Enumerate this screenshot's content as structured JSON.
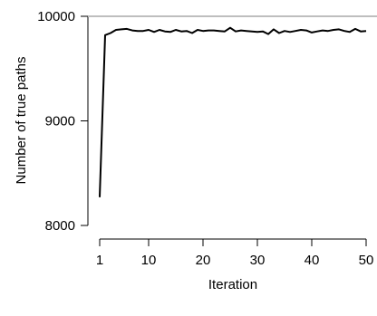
{
  "chart_data": {
    "type": "line",
    "title": "",
    "xlabel": "Iteration",
    "ylabel": "Number of true paths",
    "xlim": [
      1,
      50
    ],
    "ylim": [
      8000,
      10000
    ],
    "x_ticks": [
      1,
      10,
      20,
      30,
      40,
      50
    ],
    "y_ticks": [
      8000,
      9000,
      10000
    ],
    "reference_line": {
      "y": 10000,
      "color": "#bebebe"
    },
    "grid": false,
    "series": [
      {
        "color": "#000000",
        "x": [
          1,
          2,
          3,
          4,
          5,
          6,
          7,
          8,
          9,
          10,
          11,
          12,
          13,
          14,
          15,
          16,
          17,
          18,
          19,
          20,
          21,
          22,
          23,
          24,
          25,
          26,
          27,
          28,
          29,
          30,
          31,
          32,
          33,
          34,
          35,
          36,
          37,
          38,
          39,
          40,
          41,
          42,
          43,
          44,
          45,
          46,
          47,
          48,
          49,
          50
        ],
        "y": [
          8270,
          9820,
          9840,
          9870,
          9875,
          9880,
          9865,
          9860,
          9860,
          9870,
          9850,
          9870,
          9855,
          9850,
          9870,
          9855,
          9860,
          9840,
          9870,
          9860,
          9865,
          9865,
          9860,
          9855,
          9890,
          9855,
          9865,
          9860,
          9855,
          9850,
          9855,
          9830,
          9875,
          9840,
          9860,
          9850,
          9860,
          9870,
          9865,
          9845,
          9855,
          9865,
          9860,
          9870,
          9875,
          9860,
          9850,
          9880,
          9855,
          9860
        ]
      }
    ]
  }
}
